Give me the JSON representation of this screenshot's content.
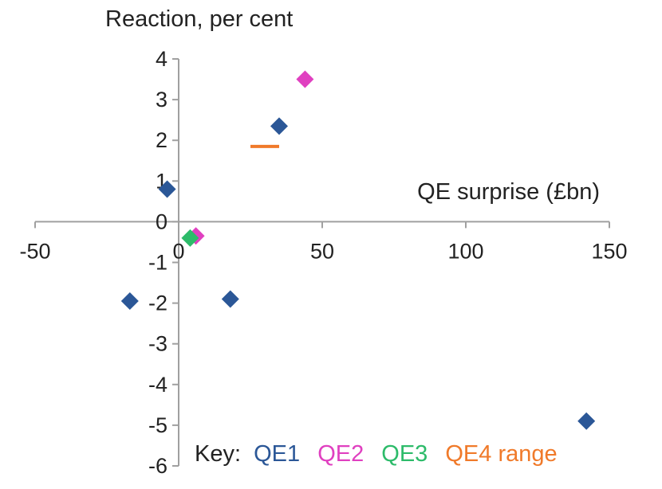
{
  "chart_data": {
    "type": "scatter",
    "ylabel": "Reaction, per cent",
    "xlabel": "QE surprise (£bn)",
    "xlim": [
      -50,
      150
    ],
    "ylim": [
      -6,
      4
    ],
    "x_ticks": [
      -50,
      0,
      50,
      100,
      150
    ],
    "y_ticks": [
      4,
      3,
      2,
      1,
      0,
      -1,
      -2,
      -3,
      -4,
      -5,
      -6
    ],
    "grid": false,
    "legend_position": "bottom",
    "key": {
      "prefix": "Key:",
      "entries": [
        {
          "label": "QE1",
          "color": "#2b5797"
        },
        {
          "label": "QE2",
          "color": "#e040c0"
        },
        {
          "label": "QE3",
          "color": "#2dbb6a"
        },
        {
          "label": "QE4 range",
          "color": "#f07a2a"
        }
      ]
    },
    "series": [
      {
        "name": "QE1",
        "color": "#2b5797",
        "marker": "diamond",
        "points": [
          {
            "x": -4,
            "y": 0.8
          },
          {
            "x": 35,
            "y": 2.35
          },
          {
            "x": -17,
            "y": -1.95
          },
          {
            "x": 18,
            "y": -1.9
          },
          {
            "x": 142,
            "y": -4.9
          }
        ]
      },
      {
        "name": "QE2",
        "color": "#e040c0",
        "marker": "diamond",
        "points": [
          {
            "x": 44,
            "y": 3.5
          },
          {
            "x": 6,
            "y": -0.35
          }
        ]
      },
      {
        "name": "QE3",
        "color": "#2dbb6a",
        "marker": "diamond",
        "points": [
          {
            "x": 4,
            "y": -0.4
          }
        ]
      },
      {
        "name": "QE4 range",
        "color": "#f07a2a",
        "marker": "range",
        "range": {
          "x_start": 25,
          "x_end": 35,
          "y": 1.85
        }
      }
    ]
  }
}
